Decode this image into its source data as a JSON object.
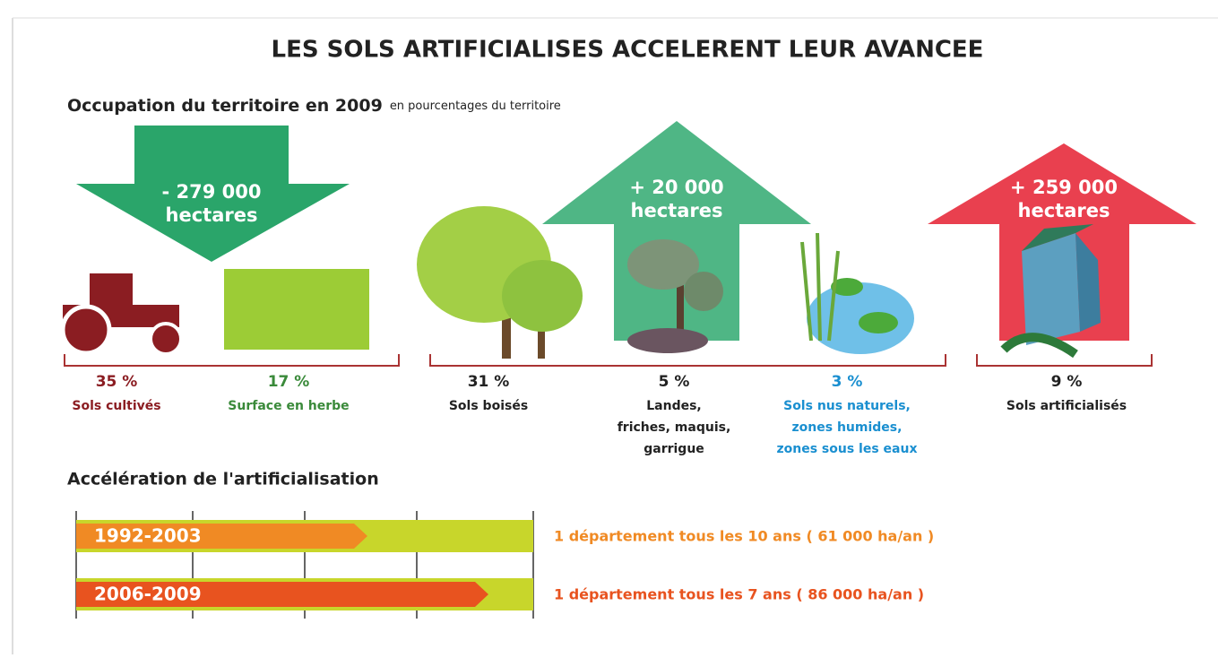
{
  "title": "LES SOLS ARTIFICIALISES ACCELERENT LEUR AVANCEE",
  "subtitle": {
    "main": "Occupation du territoire en 2009",
    "note": "en pourcentages du territoire"
  },
  "arrows": [
    {
      "lines": [
        "- 279 000",
        "hectares"
      ]
    },
    {
      "lines": [
        "+ 20 000",
        "hectares"
      ]
    },
    {
      "lines": [
        "+ 259 000",
        "hectares"
      ]
    }
  ],
  "categories": [
    {
      "percent": "35 %",
      "label": [
        "Sols cultivés"
      ]
    },
    {
      "percent": "17 %",
      "label": [
        "Surface en herbe"
      ]
    },
    {
      "percent": "31 %",
      "label": [
        "Sols boisés"
      ]
    },
    {
      "percent": "5 %",
      "label": [
        "Landes,",
        "friches, maquis,",
        "garrigue"
      ]
    },
    {
      "percent": "3 %",
      "label": [
        "Sols nus naturels,",
        "zones humides,",
        "zones sous les eaux"
      ]
    },
    {
      "percent": "9 %",
      "label": [
        "Sols artificialisés"
      ]
    }
  ],
  "acceleration": {
    "title": "Accélération de l'artificialisation",
    "periods": [
      {
        "period": "1992-2003",
        "text": "1 département tous les 10 ans ( 61 000 ha/an )"
      },
      {
        "period": "2006-2009",
        "text": "1 département tous les 7 ans ( 86 000 ha/an )"
      }
    ]
  }
}
